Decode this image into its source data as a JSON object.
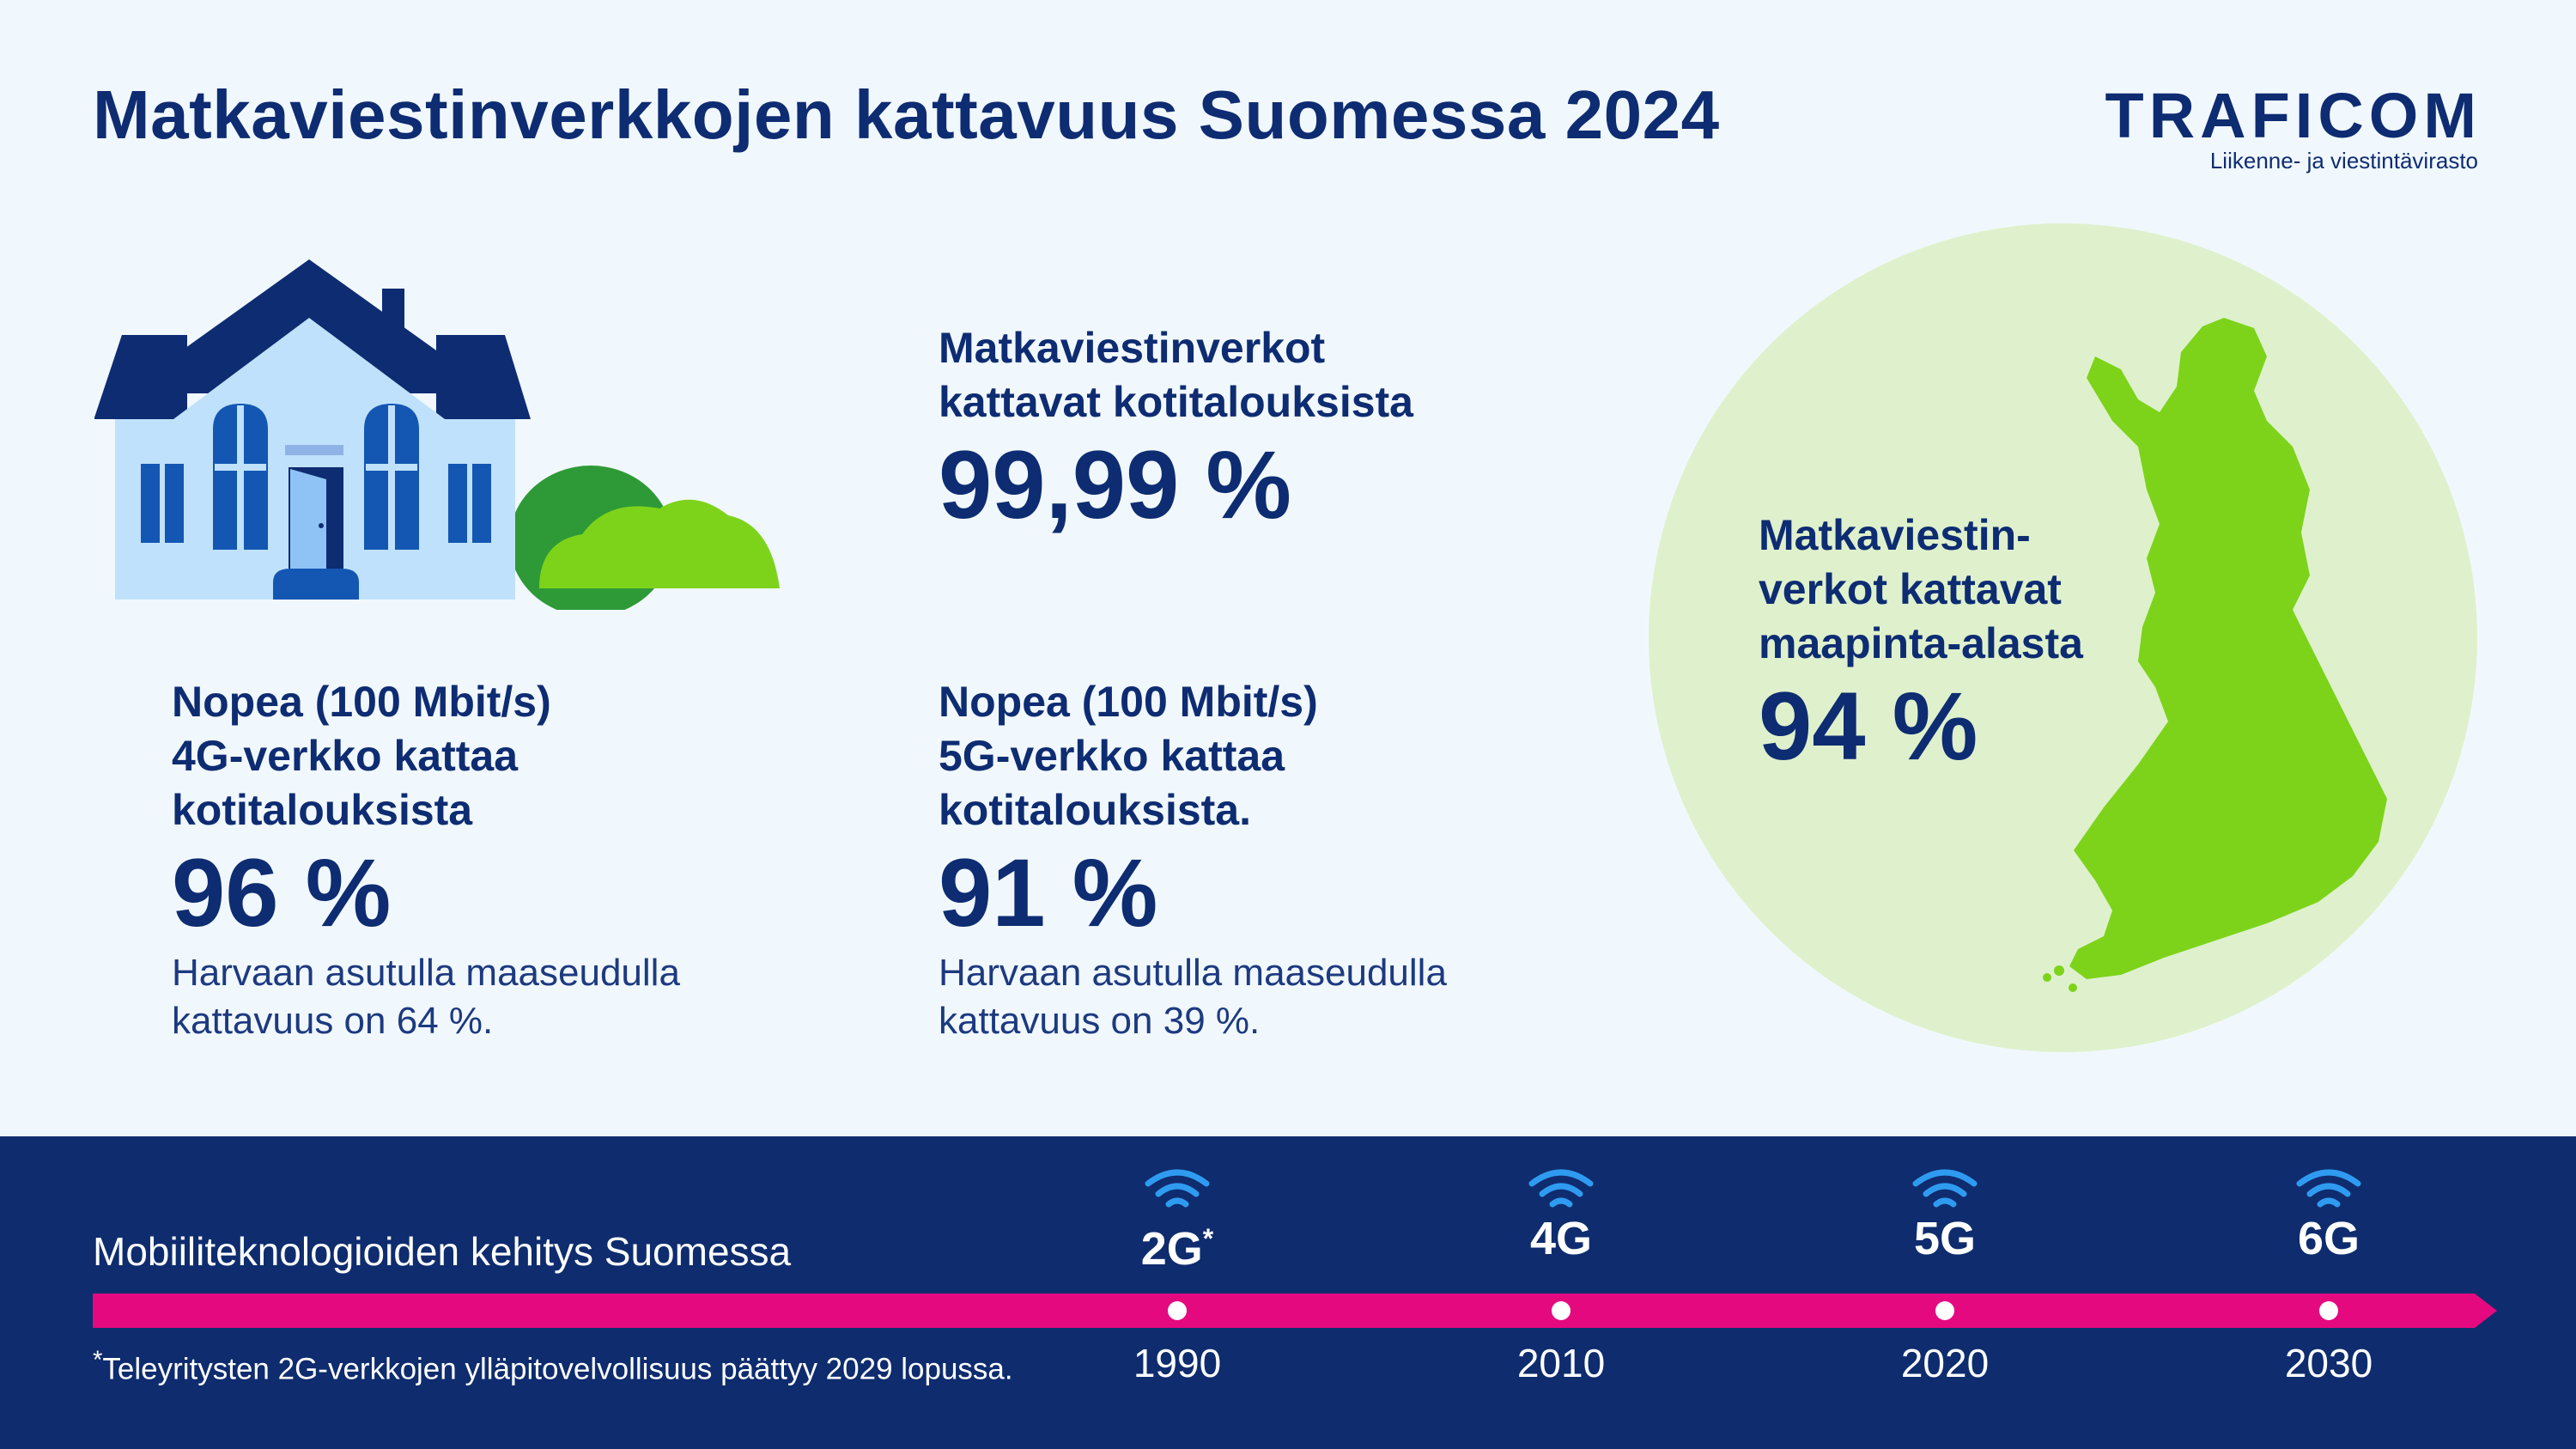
{
  "header": {
    "title": "Matkaviestinverkkojen kattavuus Suomessa 2024",
    "logo_word": "TRAFICOM",
    "logo_sub": "Liikenne- ja viestintävirasto"
  },
  "stats": {
    "households": {
      "label_line1": "Matkaviestinverkot",
      "label_line2": "kattavat kotitalouksista",
      "value": "99,99 %"
    },
    "fast_4g": {
      "label_line1": "Nopea (100 Mbit/s)",
      "label_line2": "4G-verkko kattaa",
      "label_line3": "kotitalouksista",
      "value": "96 %",
      "note_line1": "Harvaan asutulla maaseudulla",
      "note_line2": "kattavuus on 64 %."
    },
    "fast_5g": {
      "label_line1": "Nopea (100 Mbit/s)",
      "label_line2": "5G-verkko kattaa",
      "label_line3": "kotitalouksista.",
      "value": "91 %",
      "note_line1": "Harvaan asutulla maaseudulla",
      "note_line2": "kattavuus on 39 %."
    },
    "land_area": {
      "label_line1": "Matkaviestin-",
      "label_line2": "verkot kattavat",
      "label_line3": "maapinta-alasta",
      "value": "94 %"
    }
  },
  "timeline": {
    "title": "Mobiiliteknologioiden kehitys Suomessa",
    "footnote_mark": "*",
    "footnote": "Teleyritysten 2G-verkkojen ylläpitovelvollisuus päättyy 2029 lopussa.",
    "items": [
      {
        "name": "2G",
        "mark": "*",
        "year": "1990"
      },
      {
        "name": "4G",
        "mark": "",
        "year": "2010"
      },
      {
        "name": "5G",
        "mark": "",
        "year": "2020"
      },
      {
        "name": "6G",
        "mark": "",
        "year": "2030"
      }
    ]
  },
  "colors": {
    "navy": "#0e2c72",
    "band": "#0e2c6e",
    "magenta": "#e5097f",
    "wifi_blue": "#2f9bf0",
    "green": "#7dd31a",
    "circle_green": "#def1cc",
    "background": "#f1f8fd"
  }
}
